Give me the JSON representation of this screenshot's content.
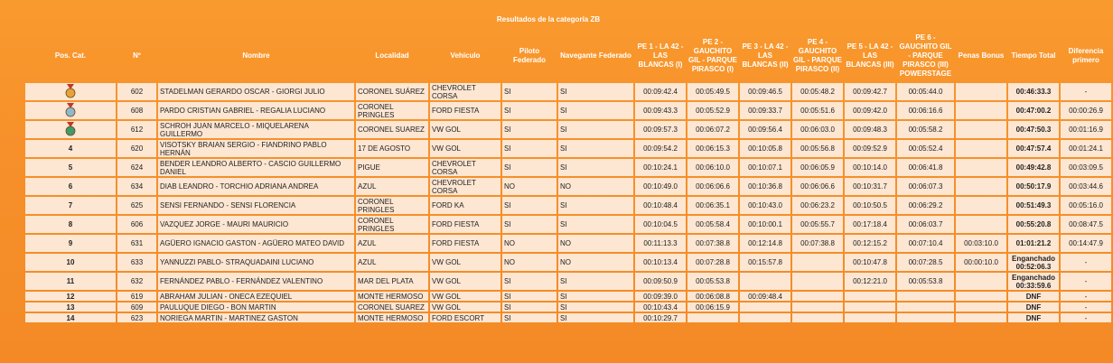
{
  "title": "Resultados de la categoría ZB",
  "headers": [
    "Pos. Cat.",
    "Nº",
    "Nombre",
    "Localidad",
    "Vehículo",
    "Piloto Federado",
    "Navegante Federado",
    "PE 1 - LA 42 - LAS BLANCAS (I)",
    "PE 2 - GAUCHITO GIL - PARQUE PIRASCO (I)",
    "PE 3 - LA 42 - LAS BLANCAS (II)",
    "PE 4 - GAUCHITO GIL - PARQUE PIRASCO (II)",
    "PE 5 - LA 42 - LAS BLANCAS (III)",
    "PE 6 - GAUCHITO GIL - PARQUE PIRASCO (III) POWERSTAGE",
    "Penas Bonus",
    "Tiempo Total",
    "Diferencia primero"
  ],
  "medal_colors": {
    "gold": "#e8a13a",
    "silver": "#8fb8cf",
    "bronze": "#3f9b6b"
  },
  "rows": [
    {
      "pos": "",
      "medal": "gold",
      "num": "602",
      "name": "STADELMAN GERARDO OSCAR - GIORGI JULIO",
      "loc": "CORONEL SUÁREZ",
      "veh": "CHEVROLET CORSA",
      "pf": "SI",
      "nf": "SI",
      "pe1": "00:09:42.4",
      "pe2": "00:05:49.5",
      "pe3": "00:09:46.5",
      "pe4": "00:05:48.2",
      "pe5": "00:09:42.7",
      "pe6": "00:05:44.0",
      "penas": "",
      "total": "00:46:33.3",
      "diff": "-"
    },
    {
      "pos": "",
      "medal": "silver",
      "num": "608",
      "name": "PARDO CRISTIAN GABRIEL - REGALIA LUCIANO",
      "loc": "CORONEL PRINGLES",
      "veh": "FORD FIESTA",
      "pf": "SI",
      "nf": "SI",
      "pe1": "00:09:43.3",
      "pe2": "00:05:52.9",
      "pe3": "00:09:33.7",
      "pe4": "00:05:51.6",
      "pe5": "00:09:42.0",
      "pe6": "00:06:16.6",
      "penas": "",
      "total": "00:47:00.2",
      "diff": "00:00:26.9"
    },
    {
      "pos": "",
      "medal": "bronze",
      "num": "612",
      "name": "SCHROH JUAN MARCELO - MIQUELARENA GUILLERMO",
      "loc": "CORONEL SUAREZ",
      "veh": "VW GOL",
      "pf": "SI",
      "nf": "SI",
      "pe1": "00:09:57.3",
      "pe2": "00:06:07.2",
      "pe3": "00:09:56.4",
      "pe4": "00:06:03.0",
      "pe5": "00:09:48.3",
      "pe6": "00:05:58.2",
      "penas": "",
      "total": "00:47:50.3",
      "diff": "00:01:16.9"
    },
    {
      "pos": "4",
      "medal": "",
      "num": "620",
      "name": "VISOTSKY BRAIAN SERGIO - FIANDRINO PABLO HERNÁN",
      "loc": "17 DE AGOSTO",
      "veh": "VW GOL",
      "pf": "SI",
      "nf": "SI",
      "pe1": "00:09:54.2",
      "pe2": "00:06:15.3",
      "pe3": "00:10:05.8",
      "pe4": "00:05:56.8",
      "pe5": "00:09:52.9",
      "pe6": "00:05:52.4",
      "penas": "",
      "total": "00:47:57.4",
      "diff": "00:01:24.1"
    },
    {
      "pos": "5",
      "medal": "",
      "num": "624",
      "name": "BENDER LEANDRO ALBERTO - CASCIO GUILLERMO DANIEL",
      "loc": "PIGUE",
      "veh": "CHEVROLET CORSA",
      "pf": "SI",
      "nf": "SI",
      "pe1": "00:10:24.1",
      "pe2": "00:06:10.0",
      "pe3": "00:10:07.1",
      "pe4": "00:06:05.9",
      "pe5": "00:10:14.0",
      "pe6": "00:06:41.8",
      "penas": "",
      "total": "00:49:42.8",
      "diff": "00:03:09.5"
    },
    {
      "pos": "6",
      "medal": "",
      "num": "634",
      "name": "DIAB LEANDRO - TORCHIO ADRIANA ANDREA",
      "loc": "AZUL",
      "veh": "CHEVROLET CORSA",
      "pf": "NO",
      "nf": "NO",
      "pe1": "00:10:49.0",
      "pe2": "00:06:06.6",
      "pe3": "00:10:36.8",
      "pe4": "00:06:06.6",
      "pe5": "00:10:31.7",
      "pe6": "00:06:07.3",
      "penas": "",
      "total": "00:50:17.9",
      "diff": "00:03:44.6"
    },
    {
      "pos": "7",
      "medal": "",
      "num": "625",
      "name": "SENSI FERNANDO - SENSI FLORENCIA",
      "loc": "CORONEL PRINGLES",
      "veh": "FORD KA",
      "pf": "SI",
      "nf": "SI",
      "pe1": "00:10:48.4",
      "pe2": "00:06:35.1",
      "pe3": "00:10:43.0",
      "pe4": "00:06:23.2",
      "pe5": "00:10:50.5",
      "pe6": "00:06:29.2",
      "penas": "",
      "total": "00:51:49.3",
      "diff": "00:05:16.0"
    },
    {
      "pos": "8",
      "medal": "",
      "num": "606",
      "name": "VAZQUEZ JORGE - MAURI MAURICIO",
      "loc": "CORONEL PRINGLES",
      "veh": "FORD FIESTA",
      "pf": "SI",
      "nf": "SI",
      "pe1": "00:10:04.5",
      "pe2": "00:05:58.4",
      "pe3": "00:10:00.1",
      "pe4": "00:05:55.7",
      "pe5": "00:17:18.4",
      "pe6": "00:06:03.7",
      "penas": "",
      "total": "00:55:20.8",
      "diff": "00:08:47.5"
    },
    {
      "pos": "9",
      "medal": "",
      "num": "631",
      "name": "AGÜERO IGNACIO GASTON - AGÜERO MATEO DAVID",
      "loc": "AZUL",
      "veh": "FORD FIESTA",
      "pf": "NO",
      "nf": "NO",
      "pe1": "00:11:13.3",
      "pe2": "00:07:38.8",
      "pe3": "00:12:14.8",
      "pe4": "00:07:38.8",
      "pe5": "00:12:15.2",
      "pe6": "00:07:10.4",
      "penas": "00:03:10.0",
      "total": "01:01:21.2",
      "diff": "00:14:47.9"
    },
    {
      "pos": "10",
      "medal": "",
      "num": "633",
      "name": "YANNUZZI PABLO- STRAQUADAINI LUCIANO",
      "loc": "AZUL",
      "veh": "VW GOL",
      "pf": "NO",
      "nf": "NO",
      "pe1": "00:10:13.4",
      "pe2": "00:07:28.8",
      "pe3": "00:15:57.8",
      "pe4": "",
      "pe5": "00:10:47.8",
      "pe6": "00:07:28.5",
      "penas": "00:00:10.0",
      "total": "Enganchado 00:52:06.3",
      "diff": "-"
    },
    {
      "pos": "11",
      "medal": "",
      "num": "632",
      "name": "FERNÁNDEZ PABLO - FERNÁNDEZ VALENTINO",
      "loc": "MAR DEL PLATA",
      "veh": "VW GOL",
      "pf": "SI",
      "nf": "SI",
      "pe1": "00:09:50.9",
      "pe2": "00:05:53.8",
      "pe3": "",
      "pe4": "",
      "pe5": "00:12:21.0",
      "pe6": "00:05:53.8",
      "penas": "",
      "total": "Enganchado 00:33:59.6",
      "diff": "-"
    },
    {
      "pos": "12",
      "medal": "",
      "num": "619",
      "name": "ABRAHAM JULIAN - ONECA EZEQUIEL",
      "loc": "MONTE HERMOSO",
      "veh": "VW GOL",
      "pf": "SI",
      "nf": "SI",
      "pe1": "00:09:39.0",
      "pe2": "00:06:08.8",
      "pe3": "00:09:48.4",
      "pe4": "",
      "pe5": "",
      "pe6": "",
      "penas": "",
      "total": "DNF",
      "diff": "-"
    },
    {
      "pos": "13",
      "medal": "",
      "num": "609",
      "name": "PAULUQUE DIEGO - BON MARTIN",
      "loc": "CORONEL SUAREZ",
      "veh": "VW GOL",
      "pf": "SI",
      "nf": "SI",
      "pe1": "00:10:43.4",
      "pe2": "00:06:15.9",
      "pe3": "",
      "pe4": "",
      "pe5": "",
      "pe6": "",
      "penas": "",
      "total": "DNF",
      "diff": "-"
    },
    {
      "pos": "14",
      "medal": "",
      "num": "623",
      "name": "NORIEGA MARTIN - MARTINEZ GASTON",
      "loc": "MONTE HERMOSO",
      "veh": "FORD ESCORT",
      "pf": "SI",
      "nf": "SI",
      "pe1": "00:10:29.7",
      "pe2": "",
      "pe3": "",
      "pe4": "",
      "pe5": "",
      "pe6": "",
      "penas": "",
      "total": "DNF",
      "diff": "-"
    }
  ]
}
